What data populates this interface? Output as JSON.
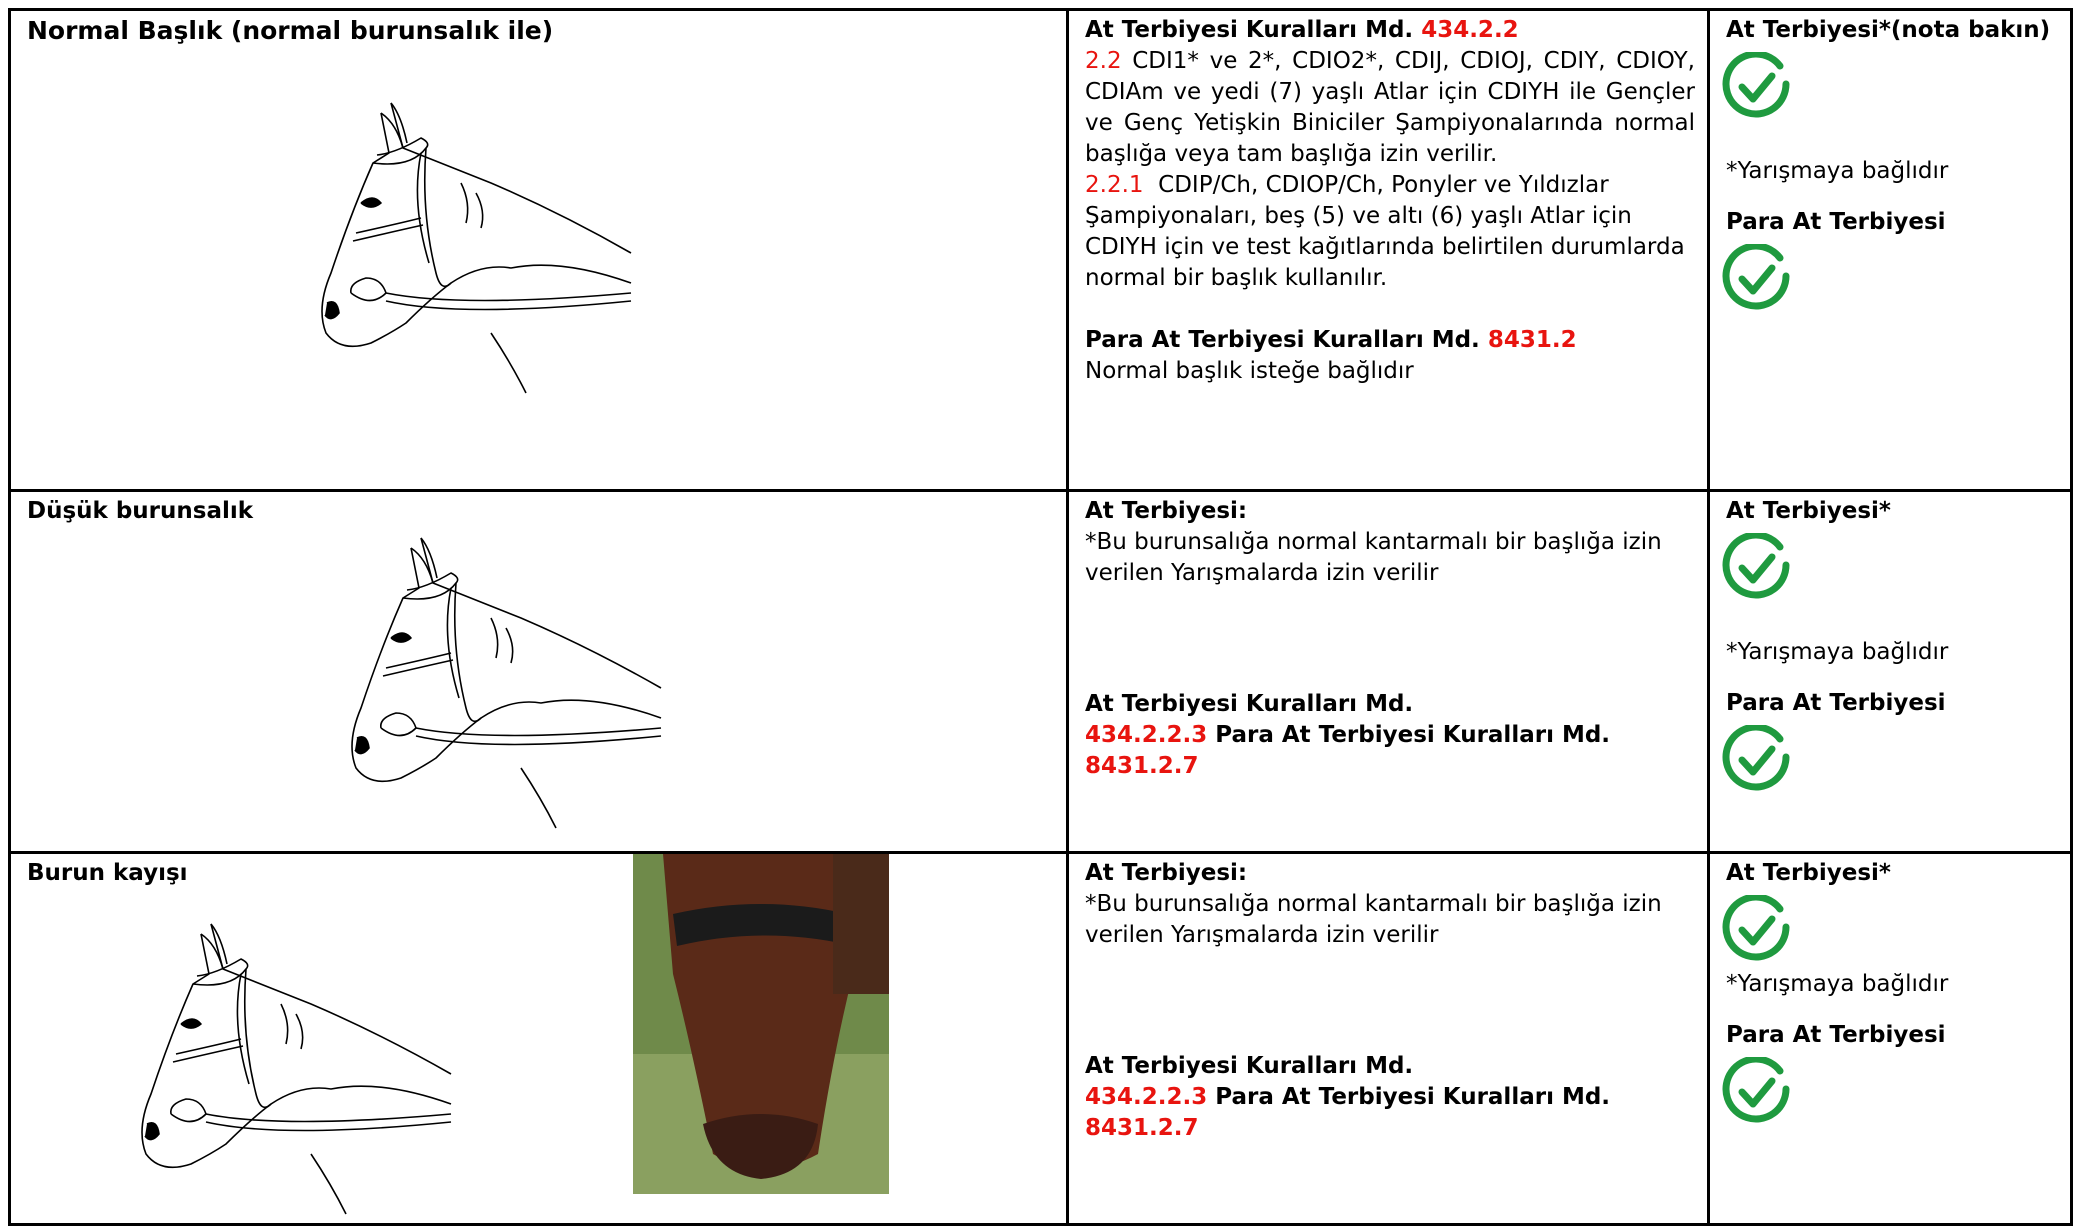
{
  "rows": [
    {
      "name": "Normal Başlık (normal burunsalık ile)",
      "rule_heading": "At Terbiyesi Kuralları Md.",
      "rule_ref": "434.2.2",
      "paragraphs": [
        {
          "ref": "2.2",
          "text": "CDI1* ve 2*, CDIO2*, CDIJ, CDIOJ, CDIY, CDIOY, CDIAm ve yedi (7) yaşlı Atlar için CDIYH ile Gençler ve Genç Yetişkin Biniciler Şampiyonalarında normal başlığa veya tam başlığa izin verilir."
        },
        {
          "ref": "2.2.1",
          "text": "CDIP/Ch, CDIOP/Ch, Ponyler ve Yıldızlar Şampiyonaları, beş (5) ve altı (6) yaşlı Atlar için CDIYH için ve test kağıtlarında belirtilen durumlarda normal bir başlık kullanılır."
        }
      ],
      "para_heading": "Para At Terbiyesi Kuralları Md.",
      "para_ref": "8431.2",
      "para_text": "Normal başlık isteğe bağlıdır",
      "status_dressage": "At Terbiyesi*(nota bakın)",
      "status_note": "*Yarışmaya bağlıdır",
      "status_para": "Para At Terbiyesi"
    },
    {
      "name": "Düşük burunsalık",
      "rule_heading": "At Terbiyesi:",
      "rule_text": "*Bu burunsalığa normal kantarmalı bir başlığa izin verilen Yarışmalarda izin verilir",
      "ref_heading": "At Terbiyesi Kuralları Md.",
      "ref_1": "434.2.2.3",
      "ref_mid": "Para At Terbiyesi Kuralları Md.",
      "ref_2": "8431.2.7",
      "status_dressage": "At Terbiyesi*",
      "status_note": "*Yarışmaya bağlıdır",
      "status_para": "Para At Terbiyesi"
    },
    {
      "name": "Burun kayışı",
      "rule_heading": "At Terbiyesi:",
      "rule_text": "*Bu burunsalığa normal kantarmalı bir başlığa izin verilen Yarışmalarda izin verilir",
      "ref_heading": "At Terbiyesi Kuralları Md.",
      "ref_1": "434.2.2.3",
      "ref_mid": "Para At Terbiyesi Kuralları Md.",
      "ref_2": "8431.2.7",
      "status_dressage": "At Terbiyesi*",
      "status_note": "*Yarışmaya bağlıdır",
      "status_para": "Para At Terbiyesi"
    }
  ]
}
